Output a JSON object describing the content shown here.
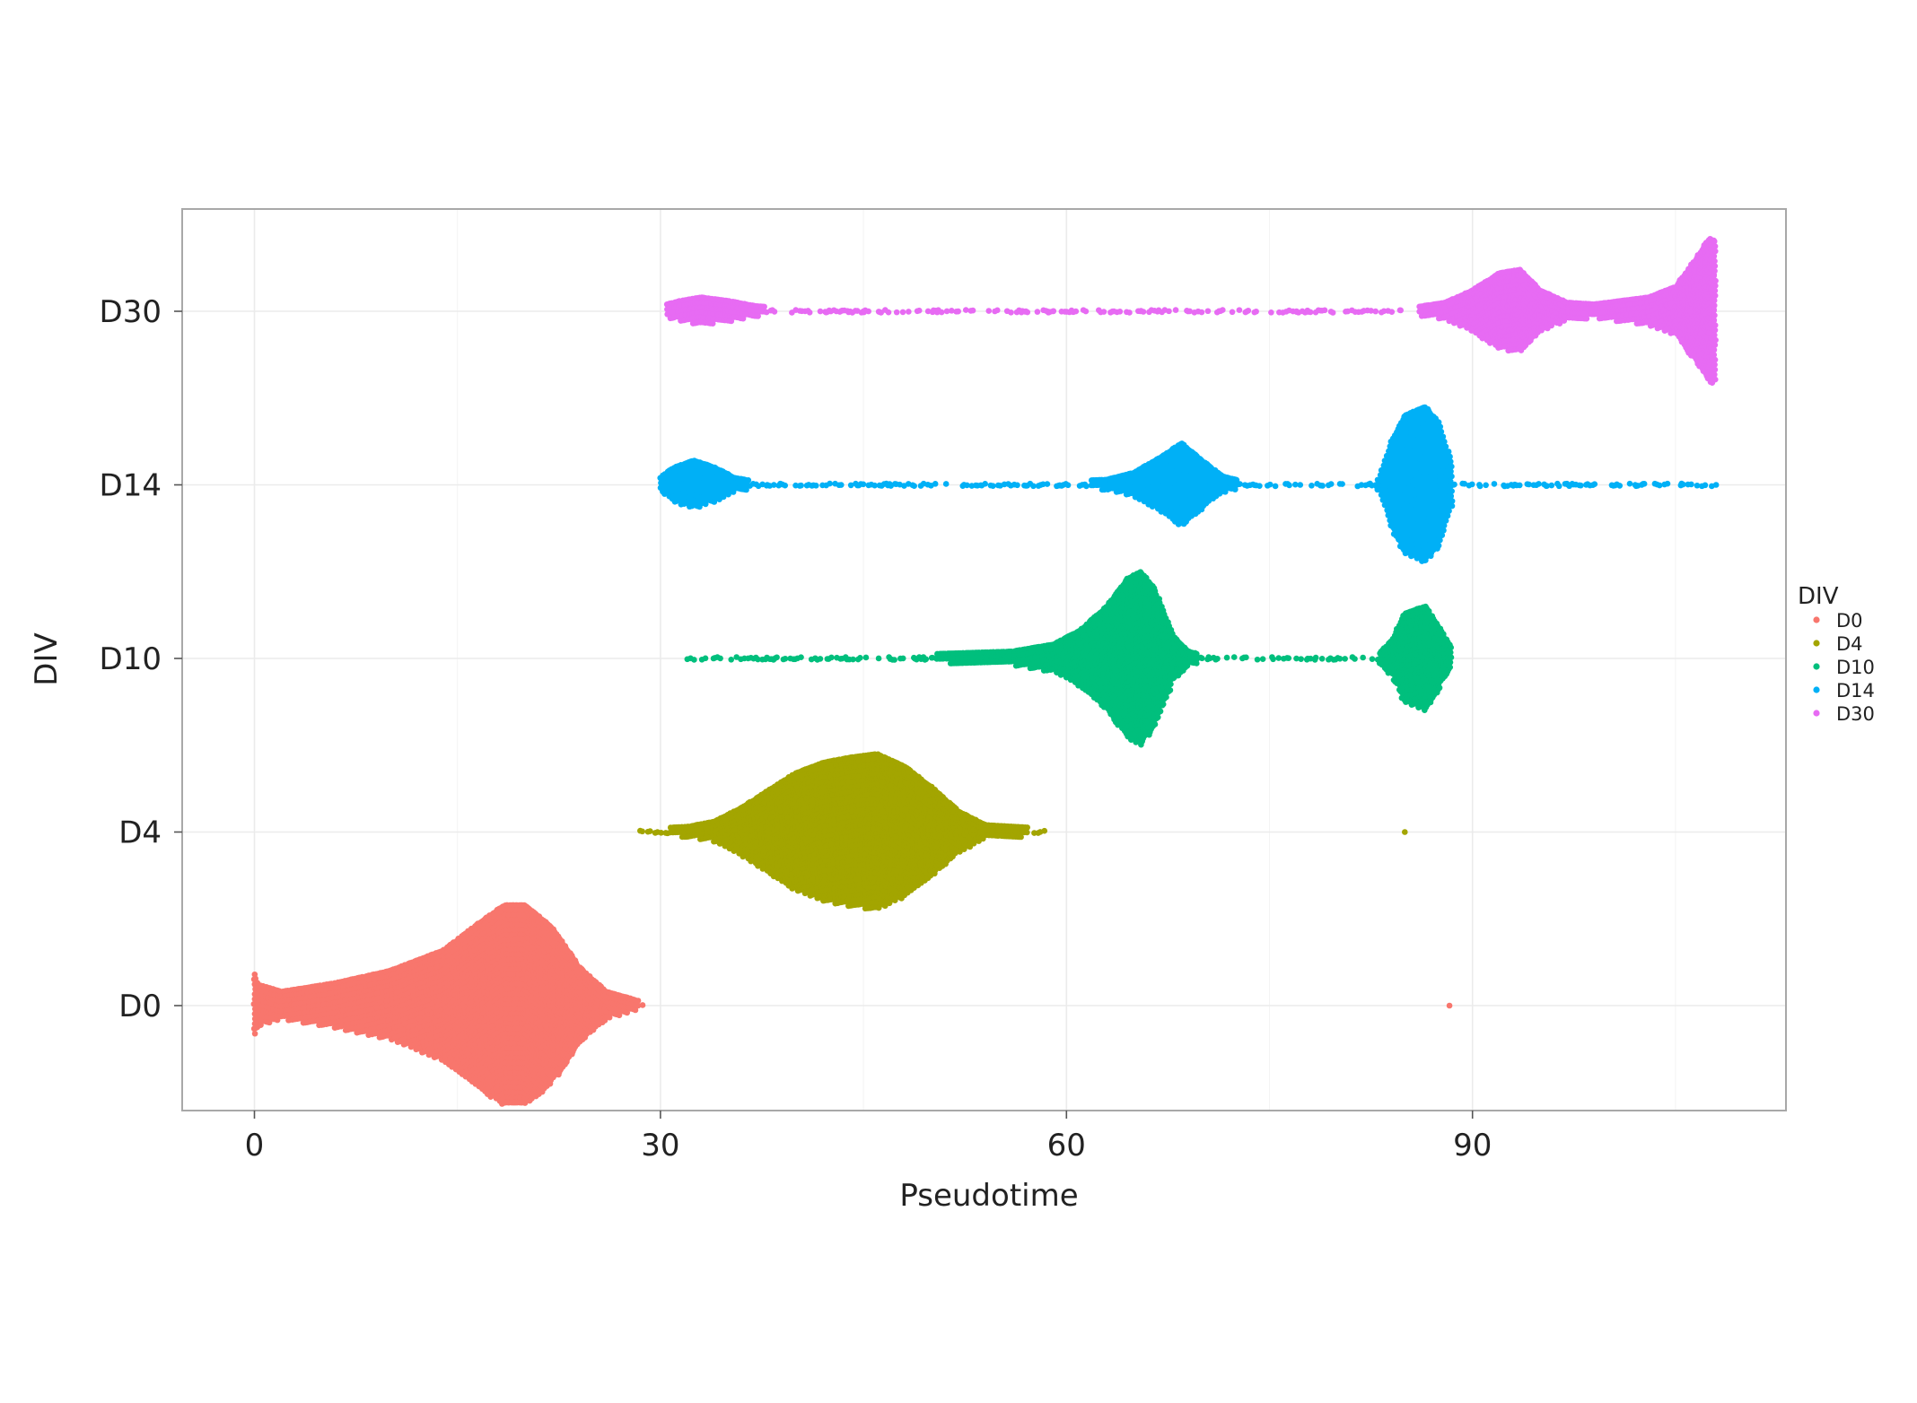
{
  "chart_data": {
    "type": "scatter",
    "subtype": "beeswarm",
    "xlabel": "Pseudotime",
    "ylabel": "DIV",
    "xlim": [
      -5.3,
      113
    ],
    "x_ticks": [
      0,
      30,
      60,
      90
    ],
    "categories": [
      "D0",
      "D4",
      "D10",
      "D14",
      "D30"
    ],
    "grid": true,
    "legend": {
      "title": "DIV",
      "placement": "right",
      "items": [
        {
          "label": "D0",
          "color": "#F8766D"
        },
        {
          "label": "D4",
          "color": "#A3A500"
        },
        {
          "label": "D10",
          "color": "#00BF7D"
        },
        {
          "label": "D14",
          "color": "#00B0F6"
        },
        {
          "label": "D30",
          "color": "#E76BF3"
        }
      ]
    },
    "series": [
      {
        "name": "D0",
        "color": "#F8766D",
        "x_range": [
          0,
          28.7
        ],
        "density_profile": [
          [
            0,
            0.18
          ],
          [
            0.3,
            0.12
          ],
          [
            2,
            0.08
          ],
          [
            6,
            0.13
          ],
          [
            10,
            0.2
          ],
          [
            14,
            0.32
          ],
          [
            17,
            0.5
          ],
          [
            18.5,
            0.58
          ],
          [
            20,
            0.58
          ],
          [
            22,
            0.45
          ],
          [
            24,
            0.22
          ],
          [
            26,
            0.08
          ],
          [
            28.7,
            0.02
          ]
        ],
        "outliers": [
          88.3
        ]
      },
      {
        "name": "D4",
        "color": "#A3A500",
        "x_range": [
          28.5,
          58.5
        ],
        "density_profile": [
          [
            28.5,
            0.02
          ],
          [
            29,
            0.02
          ],
          [
            32,
            0.03
          ],
          [
            34,
            0.06
          ],
          [
            36,
            0.14
          ],
          [
            38,
            0.24
          ],
          [
            40,
            0.34
          ],
          [
            42,
            0.4
          ],
          [
            44,
            0.43
          ],
          [
            46,
            0.45
          ],
          [
            48,
            0.38
          ],
          [
            50,
            0.26
          ],
          [
            52,
            0.12
          ],
          [
            54,
            0.04
          ],
          [
            58.5,
            0.02
          ]
        ],
        "outliers": [
          85
        ]
      },
      {
        "name": "D10",
        "color": "#00BF7D",
        "x_range": [
          32,
          88.5
        ],
        "density_profile": [
          [
            32,
            0.02
          ],
          [
            48,
            0.02
          ],
          [
            52,
            0.03
          ],
          [
            56,
            0.04
          ],
          [
            59,
            0.08
          ],
          [
            61,
            0.16
          ],
          [
            63,
            0.3
          ],
          [
            64.5,
            0.46
          ],
          [
            65.5,
            0.5
          ],
          [
            66.5,
            0.4
          ],
          [
            68,
            0.12
          ],
          [
            69,
            0.04
          ],
          [
            70,
            0.02
          ],
          [
            83,
            0.02
          ],
          [
            84,
            0.1
          ],
          [
            85,
            0.26
          ],
          [
            86.5,
            0.3
          ],
          [
            87.5,
            0.18
          ],
          [
            88.5,
            0.05
          ]
        ]
      },
      {
        "name": "D14",
        "color": "#00B0F6",
        "x_range": [
          30,
          108
        ],
        "density_profile": [
          [
            30,
            0.04
          ],
          [
            31,
            0.1
          ],
          [
            32.5,
            0.14
          ],
          [
            34,
            0.1
          ],
          [
            35.5,
            0.04
          ],
          [
            37,
            0.02
          ],
          [
            60,
            0.02
          ],
          [
            63,
            0.03
          ],
          [
            65,
            0.07
          ],
          [
            67,
            0.16
          ],
          [
            68.5,
            0.24
          ],
          [
            70,
            0.14
          ],
          [
            71.5,
            0.05
          ],
          [
            73,
            0.02
          ],
          [
            83,
            0.02
          ],
          [
            84,
            0.25
          ],
          [
            85,
            0.4
          ],
          [
            86.5,
            0.45
          ],
          [
            87.5,
            0.36
          ],
          [
            88.5,
            0.12
          ]
        ],
        "outliers": [
          102.5,
          108
        ]
      },
      {
        "name": "D30",
        "color": "#E76BF3",
        "x_range": [
          30.5,
          108
        ],
        "density_profile": [
          [
            30.5,
            0.04
          ],
          [
            31.5,
            0.06
          ],
          [
            33,
            0.08
          ],
          [
            35,
            0.06
          ],
          [
            37,
            0.03
          ],
          [
            39,
            0.02
          ],
          [
            66,
            0.02
          ],
          [
            70,
            0.02
          ],
          [
            85.5,
            0.02
          ],
          [
            88,
            0.05
          ],
          [
            90,
            0.12
          ],
          [
            92,
            0.22
          ],
          [
            93.5,
            0.24
          ],
          [
            95,
            0.12
          ],
          [
            97,
            0.05
          ],
          [
            99,
            0.04
          ],
          [
            101,
            0.06
          ],
          [
            103,
            0.08
          ],
          [
            105,
            0.14
          ],
          [
            106.5,
            0.3
          ],
          [
            107.5,
            0.42
          ],
          [
            108,
            0.4
          ]
        ],
        "outliers": [
          43,
          45,
          52,
          57,
          59,
          63.5,
          77
        ]
      }
    ]
  }
}
